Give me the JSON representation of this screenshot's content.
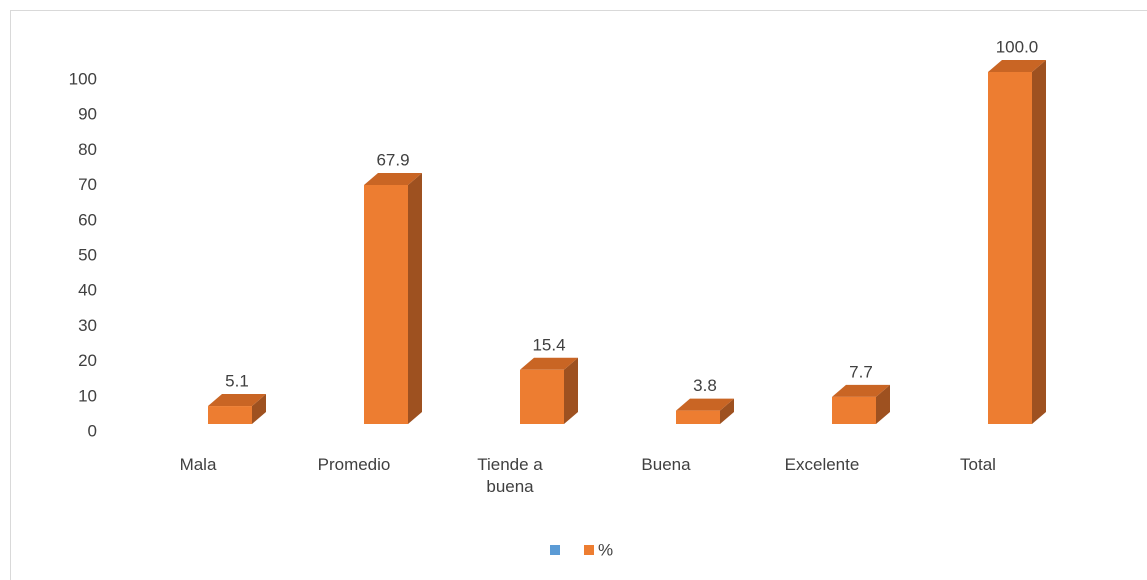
{
  "chart_data": {
    "type": "bar3d",
    "categories": [
      "Mala",
      "Promedio",
      "Tiende a buena",
      "Buena",
      "Excelente",
      "Total"
    ],
    "series": [
      {
        "name": "%",
        "color": "#ed7d31",
        "values": [
          5.1,
          67.9,
          15.4,
          3.8,
          7.7,
          100
        ],
        "value_labels": [
          "5.1",
          "67.9",
          "15.4",
          "3.8",
          "7.7",
          "100.0"
        ]
      }
    ],
    "ylim": [
      0,
      100
    ],
    "yticks": [
      0,
      10,
      20,
      30,
      40,
      50,
      60,
      70,
      80,
      90,
      100
    ],
    "legend": "bottom"
  }
}
